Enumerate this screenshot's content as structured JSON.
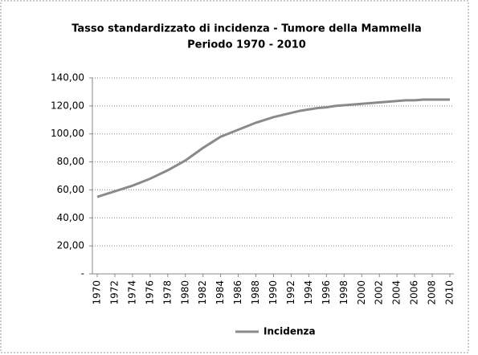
{
  "chart_data": {
    "type": "line",
    "title": "Tasso standardizzato di incidenza - Tumore della Mammella",
    "subtitle": "Periodo 1970 - 2010",
    "x": [
      1970,
      1971,
      1972,
      1973,
      1974,
      1975,
      1976,
      1977,
      1978,
      1979,
      1980,
      1981,
      1982,
      1983,
      1984,
      1985,
      1986,
      1987,
      1988,
      1989,
      1990,
      1991,
      1992,
      1993,
      1994,
      1995,
      1996,
      1997,
      1998,
      1999,
      2000,
      2001,
      2002,
      2003,
      2004,
      2005,
      2006,
      2007,
      2008,
      2009,
      2010
    ],
    "series": [
      {
        "name": "Incidenza",
        "color": "#8a8a8a",
        "values": [
          55,
          57,
          59,
          61,
          63,
          65.5,
          68,
          71,
          74,
          77.5,
          81,
          85.5,
          90,
          94,
          98,
          100.5,
          103,
          105.5,
          108,
          110,
          112,
          113.5,
          115,
          116.5,
          117.5,
          118.5,
          119,
          120,
          120.5,
          121,
          121.5,
          122,
          122.5,
          123,
          123.5,
          124,
          124,
          124.5,
          124.5,
          124.5,
          124.5
        ]
      }
    ],
    "xlim": [
      1970,
      2010
    ],
    "xticks": [
      1970,
      1972,
      1974,
      1976,
      1978,
      1980,
      1982,
      1984,
      1986,
      1988,
      1990,
      1992,
      1994,
      1996,
      1998,
      2000,
      2002,
      2004,
      2006,
      2008,
      2010
    ],
    "ylim": [
      0,
      140
    ],
    "yticks": [
      {
        "value": 0,
        "label": "-"
      },
      {
        "value": 20,
        "label": "20,00"
      },
      {
        "value": 40,
        "label": "40,00"
      },
      {
        "value": 60,
        "label": "60,00"
      },
      {
        "value": 80,
        "label": "80,00"
      },
      {
        "value": 100,
        "label": "100,00"
      },
      {
        "value": 120,
        "label": "120,00"
      },
      {
        "value": 140,
        "label": "140,00"
      }
    ],
    "grid": true,
    "legend": "bottom"
  }
}
